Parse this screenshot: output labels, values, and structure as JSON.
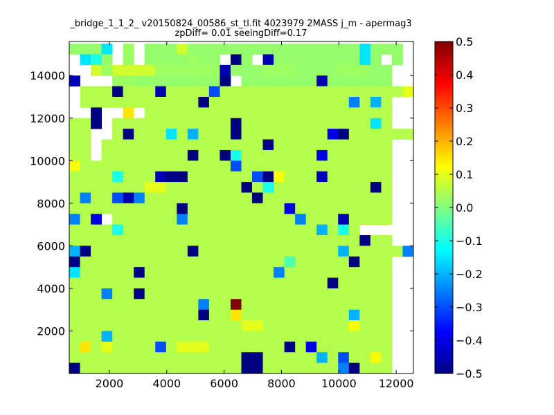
{
  "chart_data": {
    "type": "heatmap",
    "title": "_bridge_1_1_2_ v20150824_00586_st_tl.fit 4023979 2MASS j_m - apermag3",
    "subtitle": "zpDiff= 0.01 seeingDiff=0.17",
    "xlabel": "",
    "ylabel": "",
    "xlim": [
      600,
      12600
    ],
    "ylim": [
      0,
      15600
    ],
    "x_ticks": [
      2000,
      4000,
      6000,
      8000,
      10000,
      12000
    ],
    "y_ticks": [
      2000,
      4000,
      6000,
      8000,
      10000,
      12000,
      14000
    ],
    "colorbar": {
      "colormap": "jet",
      "vmin": -0.5,
      "vmax": 0.5,
      "ticks": [
        0.5,
        0.4,
        0.3,
        0.2,
        0.1,
        0.0,
        -0.1,
        -0.2,
        -0.3,
        -0.4,
        -0.5
      ],
      "tick_labels": [
        "0.5",
        "0.4",
        "0.3",
        "0.2",
        "0.1",
        "0.0",
        "−0.1",
        "−0.2",
        "−0.3",
        "−0.4",
        "−0.5"
      ]
    },
    "grid": false,
    "cells": {
      "x_start": 600,
      "x_step": 375,
      "y_start": 0,
      "y_step": 500,
      "columns": 32,
      "rows": 31,
      "note_values": "rows listed from top (y=15000-15500) to bottom (y=0-500); null = empty cell",
      "values": [
        [
          0.02,
          0.02,
          0.02,
          -0.15,
          null,
          0.03,
          null,
          0.02,
          0.02,
          0.02,
          0.08,
          0.02,
          0.02,
          0.02,
          0.02,
          0.02,
          0.02,
          0.02,
          0.02,
          0.02,
          0.02,
          0.02,
          0.02,
          0.02,
          0.02,
          0.02,
          0.02,
          -0.15,
          0.02,
          0.02,
          0.02,
          null
        ],
        [
          null,
          -0.15,
          -0.1,
          0.02,
          null,
          0.03,
          null,
          0.02,
          0.02,
          0.02,
          0.02,
          0.03,
          0.02,
          0.02,
          null,
          -0.5,
          0.02,
          null,
          -0.45,
          0.02,
          0.02,
          0.02,
          0.02,
          0.02,
          0.02,
          0.02,
          0.02,
          -0.15,
          0.02,
          null,
          0.02,
          null
        ],
        [
          null,
          null,
          0.08,
          0.03,
          0.08,
          0.08,
          0.08,
          0.08,
          0.03,
          0.03,
          0.03,
          0.03,
          0.03,
          0.03,
          -0.45,
          0.02,
          0.02,
          0.02,
          0.03,
          0.03,
          0.03,
          0.02,
          0.02,
          0.02,
          0.02,
          0.03,
          0.03,
          0.03,
          0.02,
          0.02,
          null,
          null
        ],
        [
          -0.45,
          null,
          null,
          null,
          0.03,
          0.03,
          0.02,
          0.02,
          0.02,
          0.02,
          0.02,
          0.02,
          0.02,
          0.02,
          -0.5,
          null,
          0.02,
          0.02,
          0.02,
          0.02,
          0.02,
          0.02,
          0.02,
          -0.45,
          0.02,
          0.02,
          0.02,
          0.02,
          0.02,
          0.02,
          null,
          null
        ],
        [
          null,
          0.05,
          0.05,
          0.05,
          -0.5,
          0.05,
          0.05,
          0.05,
          -0.45,
          0.05,
          0.05,
          0.05,
          0.05,
          -0.3,
          0.05,
          0.05,
          0.05,
          0.05,
          0.05,
          0.05,
          0.05,
          0.05,
          0.05,
          0.05,
          0.05,
          0.05,
          0.05,
          0.05,
          0.05,
          0.05,
          0.05,
          0.1
        ],
        [
          null,
          0.05,
          0.05,
          0.05,
          0.05,
          0.05,
          0.05,
          0.05,
          0.05,
          0.05,
          0.05,
          0.05,
          -0.5,
          0.05,
          0.05,
          0.05,
          0.05,
          0.05,
          0.05,
          0.05,
          0.05,
          0.05,
          0.05,
          0.05,
          0.05,
          0.05,
          -0.25,
          0.05,
          -0.2,
          0.05,
          null,
          null
        ],
        [
          null,
          null,
          -0.5,
          null,
          null,
          0.15,
          null,
          0.05,
          0.05,
          0.05,
          0.05,
          0.05,
          0.05,
          0.05,
          0.05,
          0.05,
          0.05,
          0.05,
          0.05,
          0.05,
          0.05,
          0.05,
          0.05,
          0.05,
          0.05,
          0.05,
          0.05,
          0.05,
          0.05,
          0.05,
          null,
          null
        ],
        [
          0.05,
          0.05,
          -0.5,
          null,
          0.05,
          0.05,
          0.05,
          0.05,
          0.05,
          0.05,
          0.05,
          0.05,
          0.05,
          0.05,
          0.05,
          -0.5,
          0.05,
          0.05,
          0.05,
          0.05,
          0.05,
          0.05,
          0.05,
          0.05,
          0.05,
          0.05,
          0.05,
          0.05,
          -0.15,
          0.05,
          null,
          null
        ],
        [
          0.05,
          0.05,
          null,
          null,
          0.05,
          -0.5,
          0.05,
          0.05,
          0.05,
          -0.15,
          0.05,
          -0.2,
          0.05,
          0.05,
          0.05,
          -0.5,
          0.05,
          0.05,
          0.05,
          0.05,
          0.05,
          0.05,
          0.05,
          0.05,
          -0.4,
          -0.5,
          0.05,
          0.05,
          0.05,
          0.05,
          0.05,
          0.05
        ],
        [
          0.05,
          0.05,
          null,
          0.05,
          0.05,
          0.05,
          0.05,
          0.05,
          0.05,
          0.05,
          0.05,
          0.05,
          0.05,
          0.05,
          0.05,
          0.05,
          0.05,
          0.05,
          -0.5,
          0.05,
          0.05,
          0.05,
          0.05,
          0.05,
          0.05,
          0.05,
          0.05,
          0.05,
          0.05,
          0.05,
          null,
          null
        ],
        [
          0.05,
          0.05,
          null,
          0.05,
          0.05,
          0.05,
          0.05,
          0.05,
          0.05,
          0.05,
          0.05,
          -0.5,
          0.05,
          0.05,
          -0.5,
          -0.1,
          0.05,
          0.05,
          0.05,
          0.05,
          0.05,
          0.05,
          0.05,
          -0.4,
          0.05,
          0.05,
          0.05,
          0.05,
          0.05,
          0.05,
          null,
          null
        ],
        [
          0.12,
          0.05,
          0.05,
          0.05,
          0.05,
          0.05,
          0.05,
          0.05,
          0.05,
          0.05,
          0.05,
          0.05,
          0.05,
          0.05,
          0.05,
          -0.3,
          0.05,
          0.05,
          0.05,
          0.05,
          0.05,
          0.05,
          0.05,
          0.05,
          0.05,
          0.05,
          0.05,
          0.05,
          0.05,
          0.05,
          null,
          null
        ],
        [
          0.05,
          0.05,
          0.05,
          0.05,
          -0.1,
          0.05,
          0.05,
          0.05,
          -0.45,
          -0.5,
          -0.5,
          0.05,
          0.05,
          0.05,
          0.05,
          0.05,
          0.05,
          -0.3,
          -0.5,
          0.12,
          0.05,
          0.05,
          0.05,
          -0.45,
          0.05,
          0.05,
          0.05,
          0.05,
          0.05,
          0.05,
          null,
          null
        ],
        [
          0.05,
          0.05,
          0.05,
          0.05,
          0.05,
          0.05,
          0.05,
          0.1,
          0.1,
          0.05,
          0.05,
          0.05,
          0.05,
          0.05,
          0.05,
          0.05,
          -0.5,
          0.05,
          -0.1,
          0.05,
          0.05,
          0.05,
          0.05,
          0.05,
          0.05,
          0.05,
          0.05,
          0.05,
          -0.5,
          0.05,
          null,
          null
        ],
        [
          0.05,
          -0.25,
          0.05,
          0.05,
          -0.3,
          -0.45,
          -0.25,
          0.05,
          0.05,
          0.05,
          0.05,
          0.05,
          0.05,
          0.05,
          0.05,
          0.05,
          0.05,
          -0.5,
          0.05,
          0.05,
          0.05,
          0.05,
          0.05,
          0.05,
          0.05,
          0.05,
          0.05,
          0.05,
          0.05,
          0.05,
          null,
          null
        ],
        [
          0.05,
          0.05,
          0.05,
          0.05,
          0.05,
          0.05,
          0.05,
          0.05,
          0.05,
          0.05,
          -0.5,
          0.05,
          0.05,
          0.05,
          0.05,
          0.05,
          0.05,
          0.05,
          0.05,
          0.05,
          -0.4,
          0.05,
          0.05,
          0.05,
          0.05,
          0.05,
          0.05,
          0.05,
          0.05,
          0.05,
          null,
          null
        ],
        [
          -0.25,
          0.05,
          -0.4,
          null,
          0.05,
          0.05,
          0.05,
          0.05,
          0.05,
          0.05,
          -0.25,
          0.05,
          0.05,
          0.05,
          0.05,
          0.05,
          0.05,
          0.05,
          0.05,
          0.05,
          0.05,
          -0.25,
          0.05,
          0.05,
          0.05,
          -0.45,
          0.05,
          0.05,
          0.05,
          0.05,
          null,
          null
        ],
        [
          0.05,
          0.05,
          0.05,
          0.05,
          -0.1,
          0.05,
          0.05,
          0.05,
          0.05,
          0.05,
          0.05,
          0.05,
          0.05,
          0.05,
          0.05,
          0.05,
          0.05,
          0.05,
          0.05,
          0.05,
          0.05,
          0.05,
          0.05,
          -0.2,
          0.05,
          -0.1,
          0.05,
          null,
          null,
          null,
          null,
          null
        ],
        [
          0.05,
          0.05,
          0.05,
          0.05,
          0.05,
          0.05,
          0.05,
          0.05,
          0.05,
          0.05,
          0.05,
          0.05,
          0.05,
          0.05,
          0.05,
          0.05,
          0.05,
          0.05,
          0.05,
          0.05,
          0.05,
          0.05,
          0.05,
          0.05,
          0.05,
          0.05,
          0.05,
          -0.5,
          0.05,
          0.05,
          null,
          null
        ],
        [
          -0.2,
          -0.5,
          0.05,
          0.05,
          0.05,
          0.05,
          0.05,
          0.05,
          0.05,
          0.05,
          0.05,
          -0.5,
          0.05,
          0.05,
          0.05,
          0.05,
          0.05,
          0.05,
          0.05,
          0.05,
          0.05,
          0.05,
          0.05,
          0.05,
          0.05,
          -0.2,
          0.05,
          0.05,
          0.05,
          0.05,
          0.05,
          -0.25
        ],
        [
          -0.5,
          0.05,
          0.05,
          0.05,
          0.05,
          0.05,
          0.05,
          0.05,
          0.05,
          0.05,
          0.05,
          0.05,
          0.05,
          0.05,
          0.05,
          0.05,
          0.05,
          0.05,
          0.05,
          0.05,
          -0.05,
          0.05,
          0.05,
          0.05,
          0.05,
          0.05,
          -0.5,
          0.05,
          0.05,
          0.05,
          null,
          null
        ],
        [
          -0.15,
          0.05,
          0.05,
          0.05,
          0.05,
          0.05,
          -0.5,
          0.05,
          0.05,
          0.05,
          0.05,
          0.05,
          0.05,
          0.05,
          0.05,
          0.05,
          0.05,
          0.05,
          0.05,
          -0.25,
          0.05,
          0.05,
          0.05,
          0.05,
          0.05,
          0.05,
          0.05,
          0.05,
          0.05,
          0.05,
          null,
          null
        ],
        [
          0.05,
          0.05,
          0.05,
          0.05,
          0.05,
          0.05,
          0.05,
          0.05,
          0.05,
          0.05,
          0.05,
          0.05,
          0.05,
          0.05,
          0.05,
          0.05,
          0.05,
          0.05,
          0.05,
          0.05,
          0.05,
          0.05,
          0.05,
          0.05,
          -0.5,
          0.05,
          0.05,
          0.05,
          0.05,
          0.05,
          null,
          null
        ],
        [
          0.05,
          0.05,
          0.05,
          -0.25,
          0.05,
          0.05,
          -0.5,
          0.05,
          0.05,
          0.05,
          0.05,
          0.05,
          0.05,
          0.05,
          0.05,
          0.05,
          0.05,
          0.05,
          0.05,
          0.05,
          0.05,
          0.05,
          0.05,
          0.05,
          0.05,
          0.05,
          0.05,
          0.05,
          0.05,
          0.05,
          null,
          null
        ],
        [
          0.05,
          0.05,
          0.05,
          0.05,
          0.05,
          0.05,
          0.05,
          0.05,
          0.05,
          0.05,
          0.05,
          0.05,
          -0.25,
          0.05,
          0.05,
          0.5,
          0.05,
          0.05,
          0.05,
          0.05,
          0.05,
          0.05,
          0.05,
          0.05,
          0.05,
          0.05,
          0.05,
          0.05,
          0.05,
          0.05,
          null,
          null
        ],
        [
          0.05,
          0.05,
          0.05,
          0.05,
          0.05,
          0.05,
          0.05,
          0.05,
          0.05,
          0.05,
          0.05,
          0.05,
          -0.5,
          0.05,
          0.05,
          0.15,
          0.05,
          0.05,
          0.05,
          0.05,
          0.05,
          0.05,
          0.05,
          0.05,
          0.05,
          0.05,
          -0.2,
          0.05,
          0.05,
          0.05,
          null,
          null
        ],
        [
          0.05,
          0.05,
          0.05,
          0.05,
          0.05,
          0.05,
          0.05,
          0.05,
          0.05,
          0.05,
          0.05,
          0.05,
          0.05,
          0.05,
          0.05,
          0.05,
          0.1,
          0.1,
          0.05,
          0.05,
          0.05,
          0.05,
          0.05,
          0.05,
          0.05,
          0.05,
          0.12,
          0.05,
          0.05,
          0.05,
          null,
          null
        ],
        [
          0.05,
          0.05,
          0.05,
          -0.2,
          0.05,
          0.05,
          0.05,
          0.05,
          0.05,
          0.05,
          0.05,
          0.05,
          0.05,
          0.05,
          0.05,
          0.05,
          0.05,
          0.05,
          0.05,
          0.05,
          0.05,
          0.05,
          0.05,
          0.05,
          0.05,
          0.05,
          0.05,
          0.05,
          0.05,
          0.05,
          null,
          null
        ],
        [
          0.05,
          0.15,
          0.05,
          0.1,
          0.05,
          0.05,
          0.05,
          0.05,
          -0.3,
          0.05,
          0.1,
          0.1,
          0.1,
          0.05,
          0.05,
          0.05,
          0.05,
          0.05,
          0.05,
          0.05,
          -0.5,
          0.05,
          -0.4,
          0.05,
          0.05,
          0.05,
          0.05,
          0.05,
          0.05,
          0.05,
          null,
          null
        ],
        [
          0.05,
          0.05,
          0.05,
          0.05,
          0.05,
          0.05,
          0.05,
          0.05,
          0.05,
          0.05,
          0.05,
          0.05,
          0.05,
          0.05,
          0.05,
          0.05,
          -0.5,
          -0.5,
          0.05,
          0.05,
          0.05,
          0.05,
          0.05,
          -0.2,
          0.05,
          -0.3,
          0.05,
          0.05,
          0.12,
          0.05,
          null,
          null
        ],
        [
          -0.5,
          0.05,
          0.05,
          0.05,
          0.05,
          0.05,
          0.05,
          0.05,
          0.05,
          0.05,
          0.05,
          0.05,
          0.05,
          0.05,
          0.05,
          0.05,
          -0.5,
          -0.5,
          0.05,
          0.05,
          0.05,
          0.05,
          0.05,
          0.05,
          0.05,
          -0.25,
          -0.5,
          0.05,
          0.05,
          0.05,
          null,
          null
        ]
      ]
    }
  }
}
